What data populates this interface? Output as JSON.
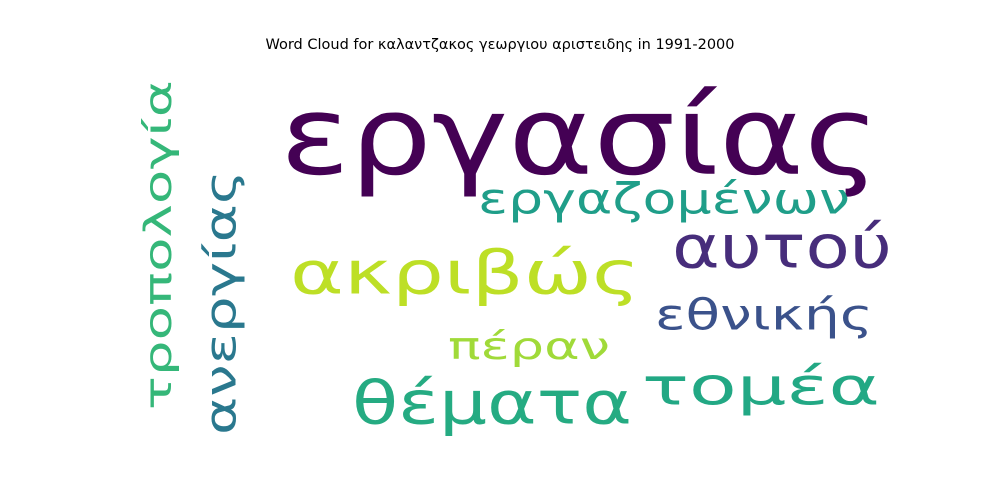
{
  "chart_data": {
    "type": "word_cloud",
    "title": "Word Cloud for καλαντζακος γεωργιου αριστειδης in 1991-2000",
    "colormap": "viridis",
    "background": "#ffffff",
    "words": [
      {
        "text": "εργασίας",
        "color": "#440154",
        "orientation": "horizontal"
      },
      {
        "text": "ακριβώς",
        "color": "#bddf26",
        "orientation": "horizontal"
      },
      {
        "text": "θέματα",
        "color": "#25ab82",
        "orientation": "horizontal"
      },
      {
        "text": "τομέα",
        "color": "#22a884",
        "orientation": "horizontal"
      },
      {
        "text": "αυτού",
        "color": "#472d7b",
        "orientation": "horizontal"
      },
      {
        "text": "εργαζομένων",
        "color": "#1f9e89",
        "orientation": "horizontal"
      },
      {
        "text": "τροπολογία",
        "color": "#35b779",
        "orientation": "vertical"
      },
      {
        "text": "ανεργίας",
        "color": "#2a788e",
        "orientation": "vertical"
      },
      {
        "text": "εθνικής",
        "color": "#3b528b",
        "orientation": "horizontal"
      },
      {
        "text": "πέραν",
        "color": "#a0da39",
        "orientation": "horizontal"
      }
    ]
  }
}
